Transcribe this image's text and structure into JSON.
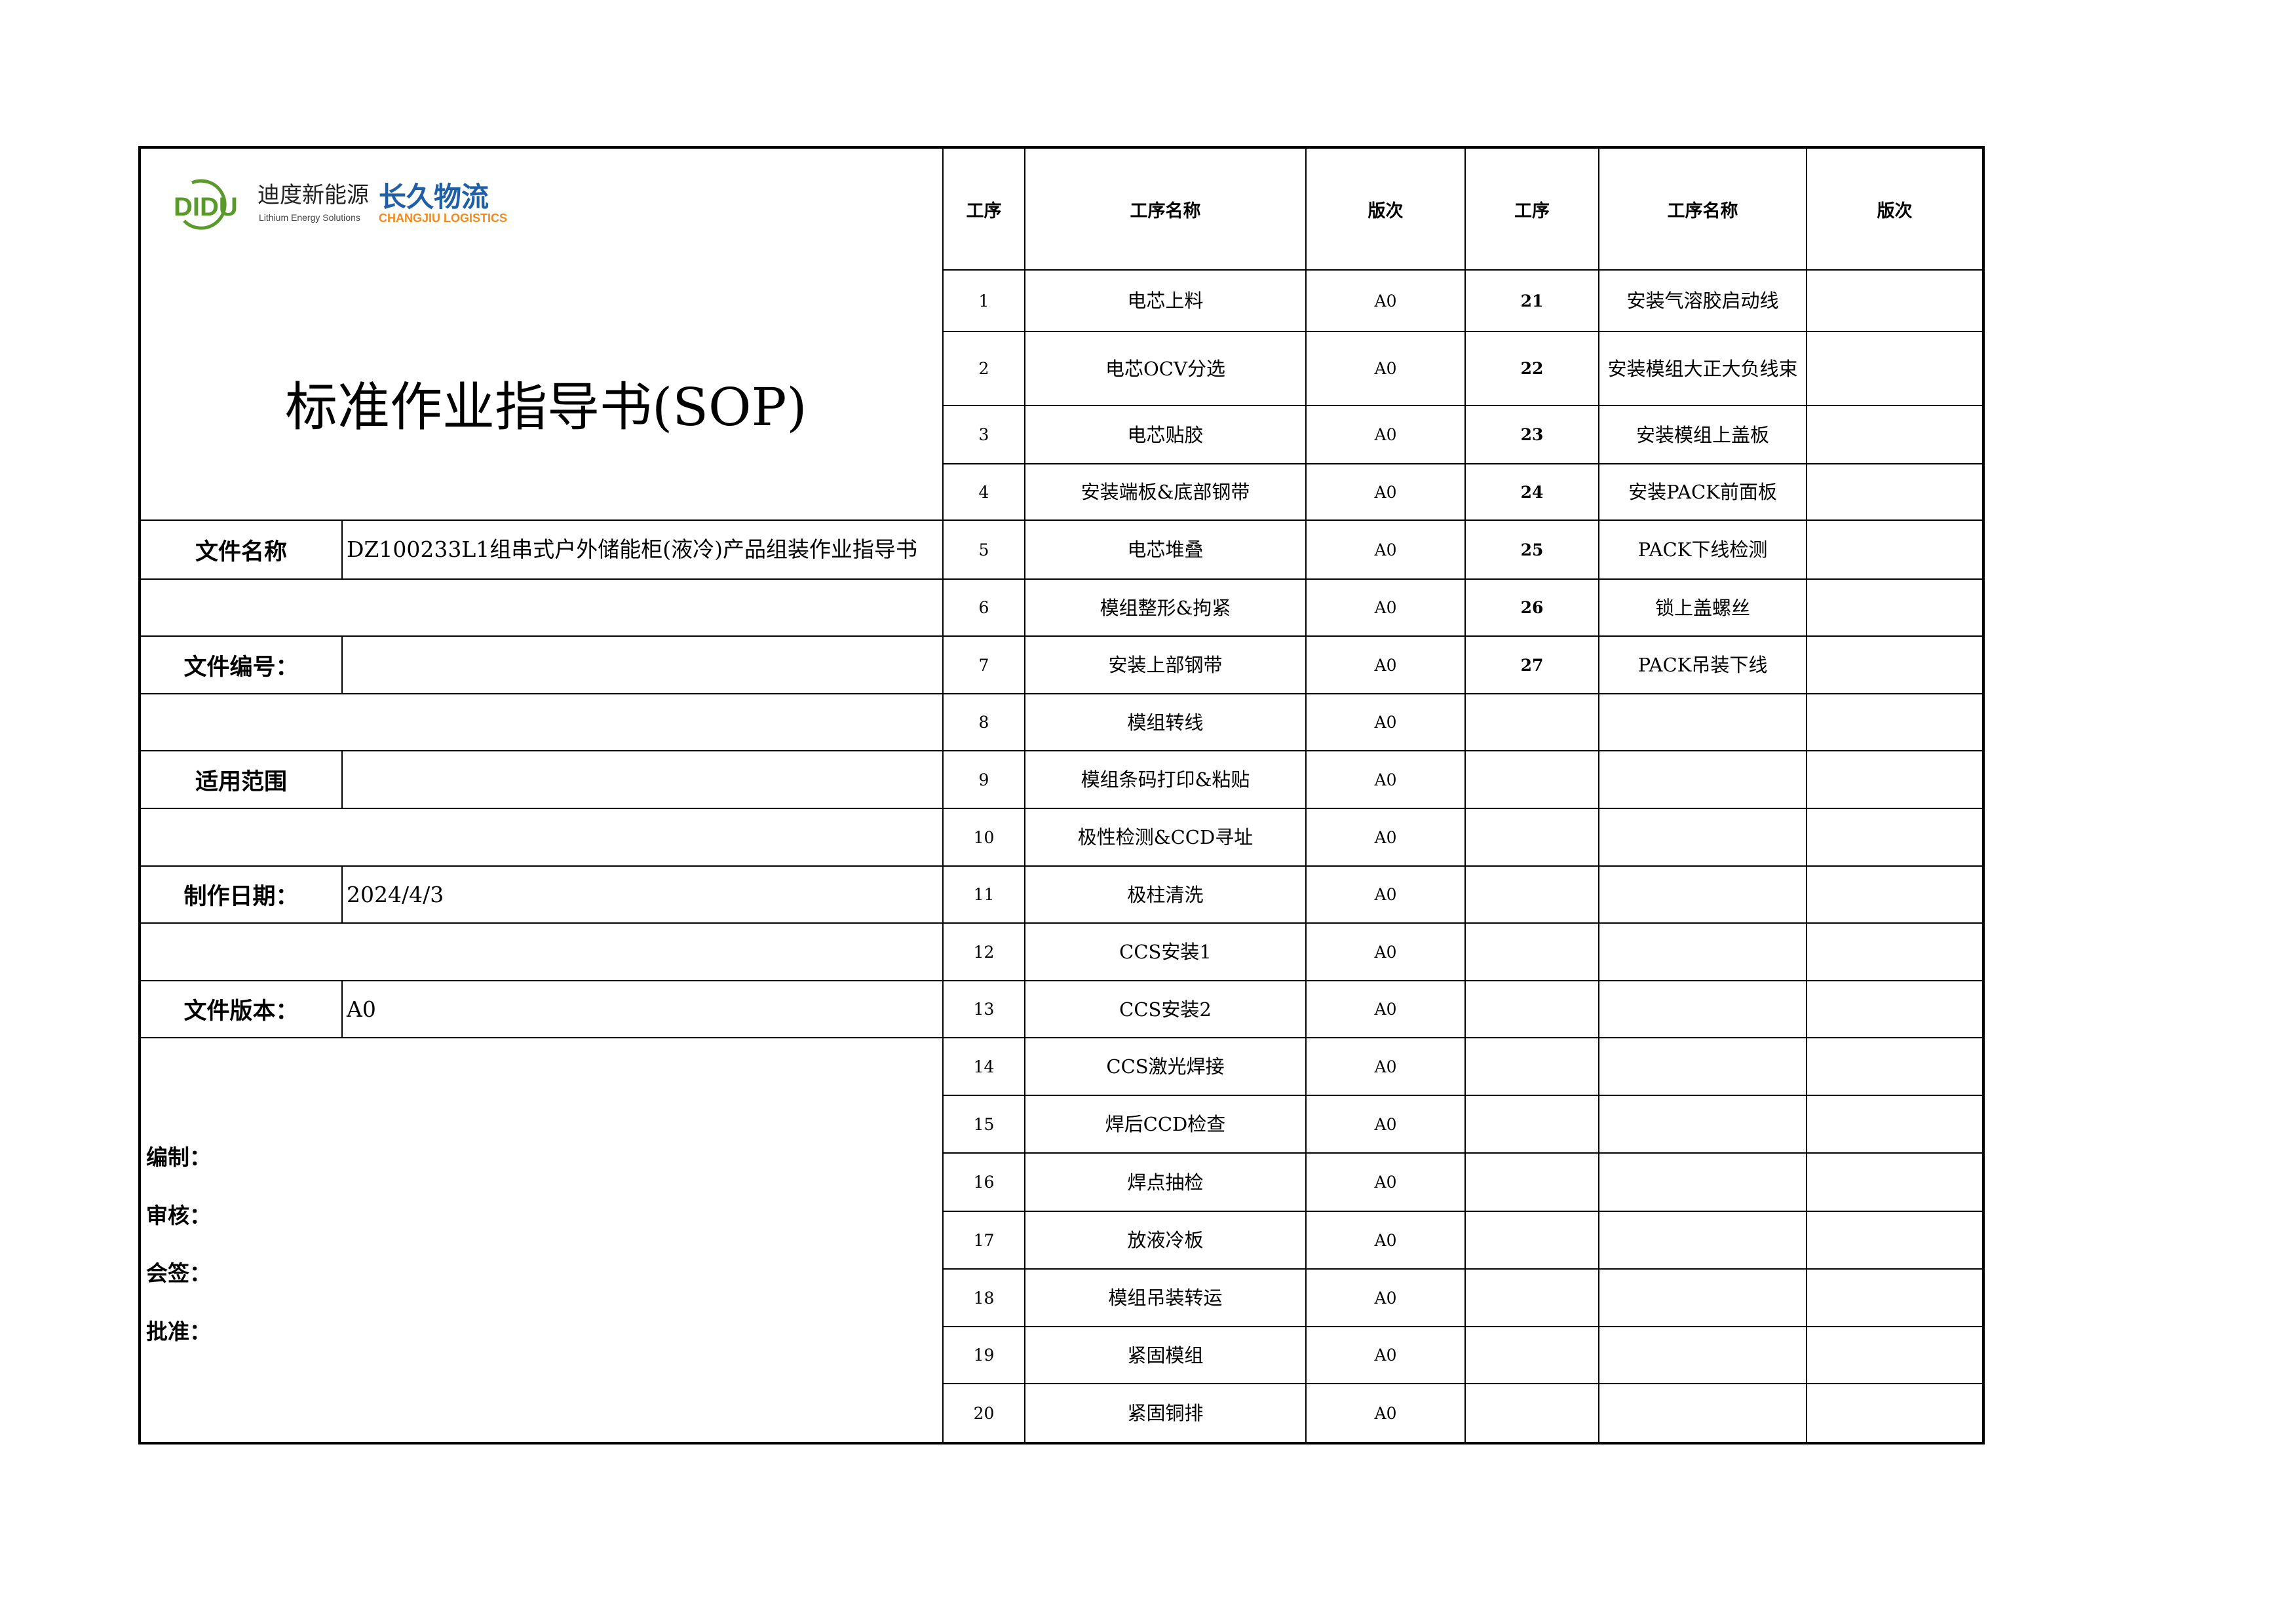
{
  "logo": {
    "brand1_cn": "迪度新能源",
    "brand1_mark": "DIDU",
    "brand1_en": "Lithium Energy Solutions",
    "brand2_cn": "长久物流",
    "brand2_en": "CHANGJIU LOGISTICS",
    "brand1_color": "#5a9a2a",
    "brand2_color": "#1f5fa8",
    "brand2_en_color": "#f08a1c"
  },
  "title": "标准作业指导书(SOP)",
  "info": {
    "file_name_label": "文件名称",
    "file_name": "DZ100233L1组串式户外储能柜(液冷)产品组装作业指导书",
    "file_no_label": "文件编号：",
    "file_no": "",
    "scope_label": "适用范围",
    "scope": "",
    "date_label": "制作日期：",
    "date": "2024/4/3",
    "version_label": "文件版本：",
    "version": "A0"
  },
  "signatures": [
    "编制：",
    "审核：",
    "会签：",
    "批准："
  ],
  "process_table": {
    "headers": [
      "工序",
      "工序名称",
      "版次",
      "工序",
      "工序名称",
      "版次"
    ],
    "left": [
      {
        "no": "1",
        "name": "电芯上料",
        "rev": "A0"
      },
      {
        "no": "2",
        "name": "电芯OCV分选",
        "rev": "A0"
      },
      {
        "no": "3",
        "name": "电芯贴胶",
        "rev": "A0"
      },
      {
        "no": "4",
        "name": "安装端板&底部钢带",
        "rev": "A0"
      },
      {
        "no": "5",
        "name": "电芯堆叠",
        "rev": "A0"
      },
      {
        "no": "6",
        "name": "模组整形&拘紧",
        "rev": "A0"
      },
      {
        "no": "7",
        "name": "安装上部钢带",
        "rev": "A0"
      },
      {
        "no": "8",
        "name": "模组转线",
        "rev": "A0"
      },
      {
        "no": "9",
        "name": "模组条码打印&粘贴",
        "rev": "A0"
      },
      {
        "no": "10",
        "name": "极性检测&CCD寻址",
        "rev": "A0"
      },
      {
        "no": "11",
        "name": "极柱清洗",
        "rev": "A0"
      },
      {
        "no": "12",
        "name": "CCS安装1",
        "rev": "A0"
      },
      {
        "no": "13",
        "name": "CCS安装2",
        "rev": "A0"
      },
      {
        "no": "14",
        "name": "CCS激光焊接",
        "rev": "A0"
      },
      {
        "no": "15",
        "name": "焊后CCD检查",
        "rev": "A0"
      },
      {
        "no": "16",
        "name": "焊点抽检",
        "rev": "A0"
      },
      {
        "no": "17",
        "name": "放液冷板",
        "rev": "A0"
      },
      {
        "no": "18",
        "name": "模组吊装转运",
        "rev": "A0"
      },
      {
        "no": "19",
        "name": "紧固模组",
        "rev": "A0"
      },
      {
        "no": "20",
        "name": "紧固铜排",
        "rev": "A0"
      }
    ],
    "right": [
      {
        "no": "21",
        "name": "安装气溶胶启动线",
        "rev": ""
      },
      {
        "no": "22",
        "name": "安装模组大正大负线束",
        "rev": ""
      },
      {
        "no": "23",
        "name": "安装模组上盖板",
        "rev": ""
      },
      {
        "no": "24",
        "name": "安装PACK前面板",
        "rev": ""
      },
      {
        "no": "25",
        "name": "PACK下线检测",
        "rev": ""
      },
      {
        "no": "26",
        "name": "锁上盖螺丝",
        "rev": ""
      },
      {
        "no": "27",
        "name": "PACK吊装下线",
        "rev": ""
      }
    ]
  }
}
